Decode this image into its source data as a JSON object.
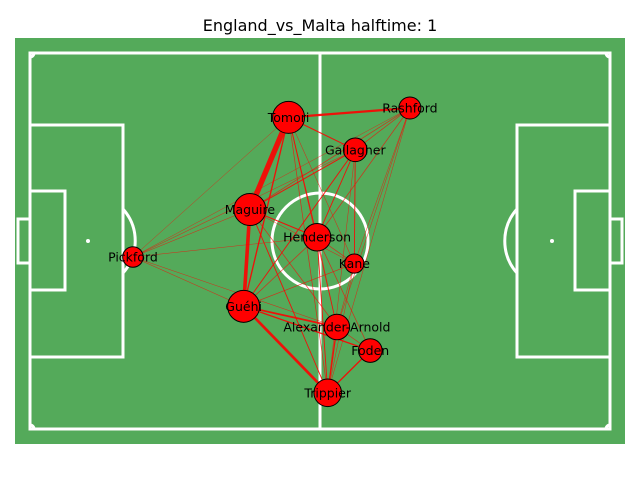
{
  "chart_data": {
    "type": "network",
    "title": "England_vs_Malta halftime: 1",
    "colors": {
      "pitch": "#54aa5a",
      "lines": "#ffffff",
      "node": "#ff0000",
      "edge": "#ff0000"
    },
    "pitch": {
      "length": 120,
      "width": 80
    },
    "nodes": [
      {
        "id": "Tomori",
        "x": 53.5,
        "y": 66.3,
        "size": 1.0
      },
      {
        "id": "Rashford",
        "x": 78.6,
        "y": 68.3,
        "size": 0.55
      },
      {
        "id": "Gallagher",
        "x": 67.3,
        "y": 59.4,
        "size": 0.62
      },
      {
        "id": "Maguire",
        "x": 45.5,
        "y": 46.7,
        "size": 1.0
      },
      {
        "id": "Henderson",
        "x": 59.4,
        "y": 40.8,
        "size": 0.8
      },
      {
        "id": "Pickford",
        "x": 21.3,
        "y": 36.6,
        "size": 0.48
      },
      {
        "id": "Kane",
        "x": 67.1,
        "y": 35.2,
        "size": 0.42
      },
      {
        "id": "Guéhi",
        "x": 44.2,
        "y": 26.1,
        "size": 1.0
      },
      {
        "id": "Alexander-Arnold",
        "x": 63.5,
        "y": 21.7,
        "size": 0.7
      },
      {
        "id": "Foden",
        "x": 70.4,
        "y": 16.7,
        "size": 0.62
      },
      {
        "id": "Trippier",
        "x": 61.6,
        "y": 7.7,
        "size": 0.8
      }
    ],
    "edges": [
      [
        "Tomori",
        "Maguire",
        6
      ],
      [
        "Maguire",
        "Guéhi",
        4
      ],
      [
        "Guéhi",
        "Trippier",
        3
      ],
      [
        "Tomori",
        "Rashford",
        2.5
      ],
      [
        "Guéhi",
        "Alexander-Arnold",
        2
      ],
      [
        "Guéhi",
        "Foden",
        1.5
      ],
      [
        "Tomori",
        "Guéhi",
        1.5
      ],
      [
        "Trippier",
        "Foden",
        1.5
      ],
      [
        "Trippier",
        "Alexander-Arnold",
        1.5
      ],
      [
        "Tomori",
        "Gallagher",
        1.2
      ],
      [
        "Maguire",
        "Henderson",
        1.2
      ],
      [
        "Tomori",
        "Henderson",
        1
      ],
      [
        "Henderson",
        "Trippier",
        1
      ],
      [
        "Maguire",
        "Trippier",
        1
      ],
      [
        "Gallagher",
        "Henderson",
        1
      ],
      [
        "Gallagher",
        "Guéhi",
        1
      ],
      [
        "Gallagher",
        "Kane",
        1
      ],
      [
        "Gallagher",
        "Maguire",
        1
      ],
      [
        "Rashford",
        "Maguire",
        0.8
      ],
      [
        "Rashford",
        "Henderson",
        0.8
      ],
      [
        "Rashford",
        "Gallagher",
        0.8
      ],
      [
        "Rashford",
        "Alexander-Arnold",
        0.6
      ],
      [
        "Rashford",
        "Trippier",
        0.6
      ],
      [
        "Rashford",
        "Kane",
        0.6
      ],
      [
        "Henderson",
        "Kane",
        0.8
      ],
      [
        "Henderson",
        "Alexander-Arnold",
        0.8
      ],
      [
        "Henderson",
        "Foden",
        0.8
      ],
      [
        "Henderson",
        "Guéhi",
        0.8
      ],
      [
        "Kane",
        "Guéhi",
        0.8
      ],
      [
        "Kane",
        "Alexander-Arnold",
        0.6
      ],
      [
        "Kane",
        "Trippier",
        0.6
      ],
      [
        "Maguire",
        "Alexander-Arnold",
        0.8
      ],
      [
        "Maguire",
        "Kane",
        0.6
      ],
      [
        "Tomori",
        "Kane",
        0.6
      ],
      [
        "Tomori",
        "Trippier",
        0.8
      ],
      [
        "Tomori",
        "Alexander-Arnold",
        0.8
      ],
      [
        "Pickford",
        "Gallagher",
        0.6
      ],
      [
        "Pickford",
        "Maguire",
        0.6
      ],
      [
        "Pickford",
        "Henderson",
        0.6
      ],
      [
        "Pickford",
        "Guéhi",
        0.6
      ],
      [
        "Pickford",
        "Alexander-Arnold",
        0.6
      ],
      [
        "Pickford",
        "Rashford",
        0.5
      ],
      [
        "Pickford",
        "Tomori",
        0.5
      ],
      [
        "Alexander-Arnold",
        "Foden",
        0.8
      ],
      [
        "Gallagher",
        "Trippier",
        0.6
      ]
    ]
  }
}
